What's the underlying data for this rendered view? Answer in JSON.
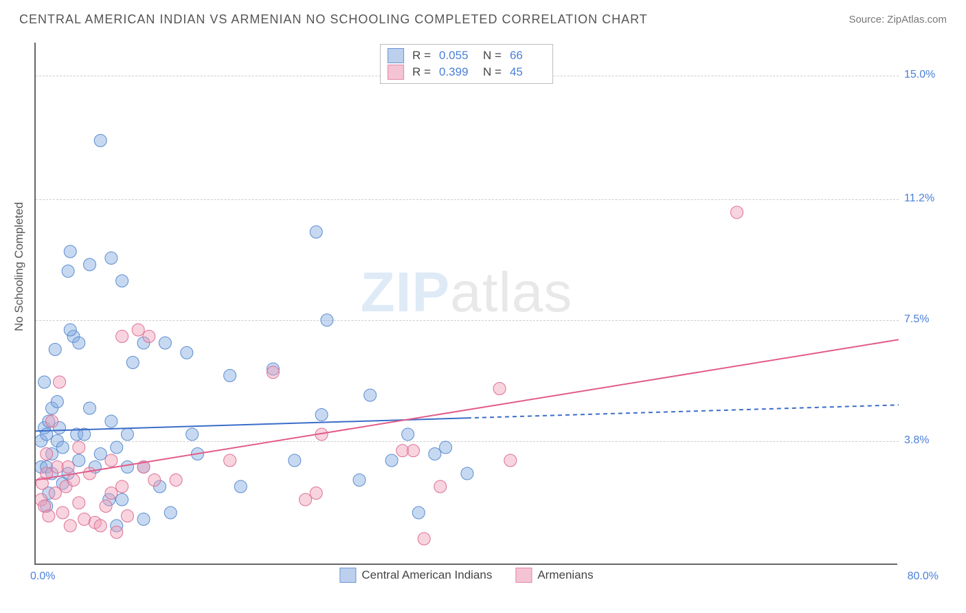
{
  "header": {
    "title": "CENTRAL AMERICAN INDIAN VS ARMENIAN NO SCHOOLING COMPLETED CORRELATION CHART",
    "source": "Source: ZipAtlas.com"
  },
  "watermark": {
    "zip": "ZIP",
    "atlas": "atlas"
  },
  "chart": {
    "type": "scatter",
    "y_axis_title": "No Schooling Completed",
    "x_range": [
      0,
      80
    ],
    "y_range": [
      0,
      16
    ],
    "x_tick_labels": {
      "start": "0.0%",
      "end": "80.0%"
    },
    "y_ticks": [
      {
        "value": 3.8,
        "label": "3.8%"
      },
      {
        "value": 7.5,
        "label": "7.5%"
      },
      {
        "value": 11.2,
        "label": "11.2%"
      },
      {
        "value": 15.0,
        "label": "15.0%"
      }
    ],
    "grid_color": "#cccccc",
    "axis_color": "#666666",
    "background_color": "#ffffff",
    "label_color": "#4a7fd8",
    "marker_radius": 9,
    "marker_border_width": 1,
    "series": [
      {
        "name": "Central American Indians",
        "color_fill": "rgba(130,170,225,0.45)",
        "color_stroke": "#5a8cd0",
        "swatch_fill": "#bcd0ee",
        "swatch_border": "#6b95d4",
        "legend_R": "0.055",
        "legend_N": "66",
        "trend_line": {
          "x1": 0,
          "y1": 4.1,
          "x2": 40,
          "y2": 4.5,
          "dash_x2": 80,
          "dash_y2": 4.9,
          "color": "#3a6cc8",
          "width": 2
        },
        "points": [
          [
            0.5,
            3.0
          ],
          [
            0.5,
            3.8
          ],
          [
            0.8,
            4.2
          ],
          [
            0.8,
            5.6
          ],
          [
            1.0,
            1.8
          ],
          [
            1.0,
            3.0
          ],
          [
            1.0,
            4.0
          ],
          [
            1.2,
            2.2
          ],
          [
            1.2,
            4.4
          ],
          [
            1.5,
            2.8
          ],
          [
            1.5,
            3.4
          ],
          [
            1.5,
            4.8
          ],
          [
            1.8,
            6.6
          ],
          [
            2.0,
            3.8
          ],
          [
            2.0,
            5.0
          ],
          [
            2.2,
            4.2
          ],
          [
            2.5,
            2.5
          ],
          [
            2.5,
            3.6
          ],
          [
            3.0,
            2.8
          ],
          [
            3.0,
            9.0
          ],
          [
            3.2,
            9.6
          ],
          [
            3.5,
            7.0
          ],
          [
            3.8,
            4.0
          ],
          [
            4.0,
            3.2
          ],
          [
            4.0,
            6.8
          ],
          [
            4.5,
            4.0
          ],
          [
            5.0,
            9.2
          ],
          [
            5.0,
            4.8
          ],
          [
            5.5,
            3.0
          ],
          [
            6.0,
            3.4
          ],
          [
            6.0,
            13.0
          ],
          [
            6.8,
            2.0
          ],
          [
            7.0,
            4.4
          ],
          [
            7.5,
            1.2
          ],
          [
            7.5,
            3.6
          ],
          [
            8.0,
            2.0
          ],
          [
            8.0,
            8.7
          ],
          [
            8.5,
            3.0
          ],
          [
            8.5,
            4.0
          ],
          [
            9.0,
            6.2
          ],
          [
            10.0,
            1.4
          ],
          [
            10.0,
            3.0
          ],
          [
            10.0,
            6.8
          ],
          [
            11.5,
            2.4
          ],
          [
            12.0,
            6.8
          ],
          [
            12.5,
            1.6
          ],
          [
            14.0,
            6.5
          ],
          [
            14.5,
            4.0
          ],
          [
            15.0,
            3.4
          ],
          [
            18.0,
            5.8
          ],
          [
            19.0,
            2.4
          ],
          [
            22.0,
            6.0
          ],
          [
            24.0,
            3.2
          ],
          [
            26.0,
            10.2
          ],
          [
            26.5,
            4.6
          ],
          [
            27.0,
            7.5
          ],
          [
            30.0,
            2.6
          ],
          [
            31.0,
            5.2
          ],
          [
            33.0,
            3.2
          ],
          [
            34.5,
            4.0
          ],
          [
            35.5,
            1.6
          ],
          [
            37.0,
            3.4
          ],
          [
            38.0,
            3.6
          ],
          [
            40.0,
            2.8
          ],
          [
            7.0,
            9.4
          ],
          [
            3.2,
            7.2
          ]
        ]
      },
      {
        "name": "Armenians",
        "color_fill": "rgba(240,160,185,0.45)",
        "color_stroke": "#dd6f95",
        "swatch_fill": "#f4c4d4",
        "swatch_border": "#e684a6",
        "legend_R": "0.399",
        "legend_N": "45",
        "trend_line": {
          "x1": 0,
          "y1": 2.6,
          "x2": 80,
          "y2": 6.9,
          "color": "#e25b88",
          "width": 2
        },
        "points": [
          [
            0.5,
            2.0
          ],
          [
            0.6,
            2.5
          ],
          [
            0.8,
            1.8
          ],
          [
            1.0,
            2.8
          ],
          [
            1.0,
            3.4
          ],
          [
            1.2,
            1.5
          ],
          [
            1.5,
            4.4
          ],
          [
            1.8,
            2.2
          ],
          [
            2.0,
            3.0
          ],
          [
            2.2,
            5.6
          ],
          [
            2.5,
            1.6
          ],
          [
            2.8,
            2.4
          ],
          [
            3.0,
            3.0
          ],
          [
            3.2,
            1.2
          ],
          [
            3.5,
            2.6
          ],
          [
            4.0,
            1.9
          ],
          [
            4.0,
            3.6
          ],
          [
            4.5,
            1.4
          ],
          [
            5.0,
            2.8
          ],
          [
            5.5,
            1.3
          ],
          [
            6.0,
            1.2
          ],
          [
            6.5,
            1.8
          ],
          [
            7.0,
            2.2
          ],
          [
            7.0,
            3.2
          ],
          [
            7.5,
            1.0
          ],
          [
            8.0,
            2.4
          ],
          [
            8.5,
            1.5
          ],
          [
            9.5,
            7.2
          ],
          [
            10.0,
            3.0
          ],
          [
            10.5,
            7.0
          ],
          [
            11.0,
            2.6
          ],
          [
            13.0,
            2.6
          ],
          [
            18.0,
            3.2
          ],
          [
            22.0,
            5.9
          ],
          [
            25.0,
            2.0
          ],
          [
            26.0,
            2.2
          ],
          [
            26.5,
            4.0
          ],
          [
            34.0,
            3.5
          ],
          [
            35.0,
            3.5
          ],
          [
            36.0,
            0.8
          ],
          [
            37.5,
            2.4
          ],
          [
            43.0,
            5.4
          ],
          [
            44.0,
            3.2
          ],
          [
            65.0,
            10.8
          ],
          [
            8.0,
            7.0
          ]
        ]
      }
    ]
  }
}
